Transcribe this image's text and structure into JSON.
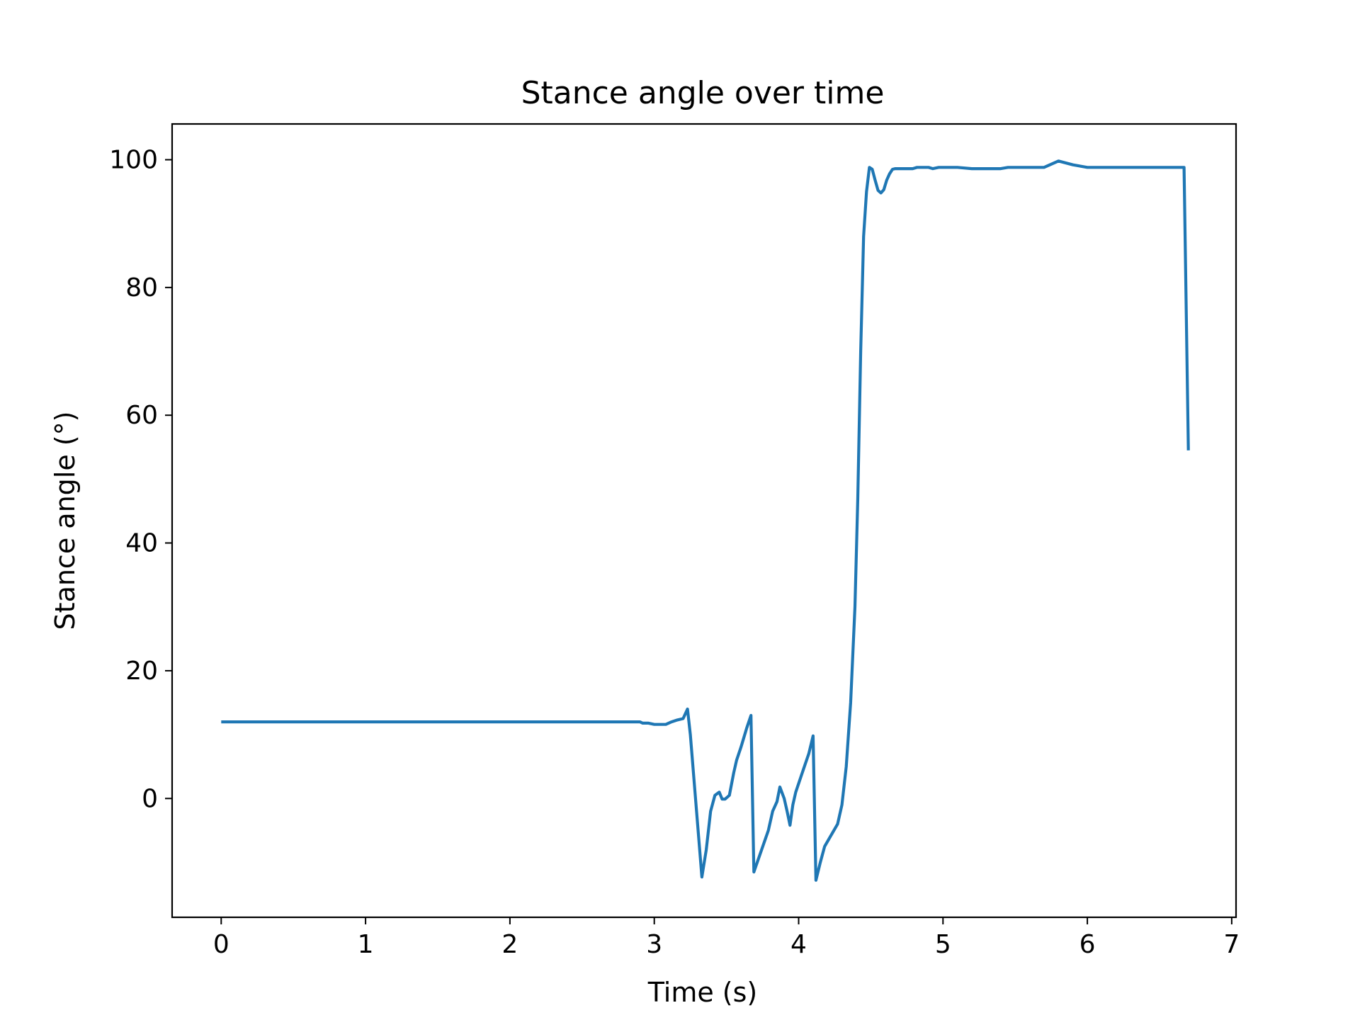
{
  "chart_data": {
    "type": "line",
    "title": "Stance angle over time",
    "xlabel": "Time (s)",
    "ylabel": "Stance angle (°)",
    "xlim": [
      -0.34,
      7.03
    ],
    "ylim": [
      -18.6,
      105.6
    ],
    "xticks": [
      0,
      1,
      2,
      3,
      4,
      5,
      6,
      7
    ],
    "yticks": [
      0,
      20,
      40,
      60,
      80,
      100
    ],
    "grid": false,
    "legend": "none",
    "series": [
      {
        "color": "#1f77b4",
        "x": [
          0,
          0.5,
          1.0,
          1.5,
          2.0,
          2.5,
          2.9,
          2.92,
          2.96,
          3.0,
          3.04,
          3.08,
          3.12,
          3.16,
          3.2,
          3.23,
          3.25,
          3.33,
          3.36,
          3.39,
          3.42,
          3.45,
          3.47,
          3.49,
          3.52,
          3.55,
          3.57,
          3.6,
          3.64,
          3.67,
          3.69,
          3.79,
          3.82,
          3.85,
          3.87,
          3.9,
          3.92,
          3.94,
          3.96,
          3.98,
          4.01,
          4.04,
          4.07,
          4.1,
          4.12,
          4.15,
          4.18,
          4.27,
          4.3,
          4.33,
          4.36,
          4.39,
          4.41,
          4.43,
          4.45,
          4.47,
          4.49,
          4.51,
          4.53,
          4.55,
          4.57,
          4.59,
          4.61,
          4.63,
          4.65,
          4.67,
          4.7,
          4.73,
          4.76,
          4.79,
          4.82,
          4.86,
          4.9,
          4.93,
          4.97,
          5.0,
          5.1,
          5.2,
          5.3,
          5.4,
          5.45,
          5.5,
          5.55,
          5.6,
          5.7,
          5.8,
          5.9,
          6.0,
          6.1,
          6.15,
          6.22,
          6.27,
          6.35,
          6.45,
          6.55,
          6.65,
          6.67,
          6.7
        ],
        "y": [
          12,
          12,
          12,
          12,
          12,
          12,
          12,
          11.8,
          11.8,
          11.6,
          11.6,
          11.6,
          12.0,
          12.3,
          12.5,
          14.0,
          10,
          -12.3,
          -8.0,
          -2.0,
          0.5,
          1.0,
          -0.1,
          -0.1,
          0.5,
          4.0,
          6.0,
          8.0,
          11.0,
          13.0,
          -11.5,
          -5.0,
          -2.0,
          -0.5,
          1.8,
          0.0,
          -2.0,
          -4.2,
          -1.0,
          1.0,
          3.0,
          5.0,
          7.0,
          9.8,
          -12.8,
          -10.0,
          -7.5,
          -4.0,
          -1.0,
          5.0,
          15.0,
          30.0,
          47.0,
          70.0,
          88.0,
          95.0,
          98.8,
          98.5,
          96.8,
          95.2,
          94.8,
          95.3,
          96.8,
          97.8,
          98.5,
          98.6,
          98.6,
          98.6,
          98.6,
          98.6,
          98.8,
          98.8,
          98.8,
          98.6,
          98.8,
          98.8,
          98.8,
          98.6,
          98.6,
          98.6,
          98.8,
          98.8,
          98.8,
          98.8,
          98.8,
          99.8,
          99.2,
          98.8,
          98.8,
          98.8,
          98.8,
          98.8,
          98.8,
          98.8,
          98.8,
          98.8,
          98.8,
          54.5
        ]
      }
    ]
  }
}
